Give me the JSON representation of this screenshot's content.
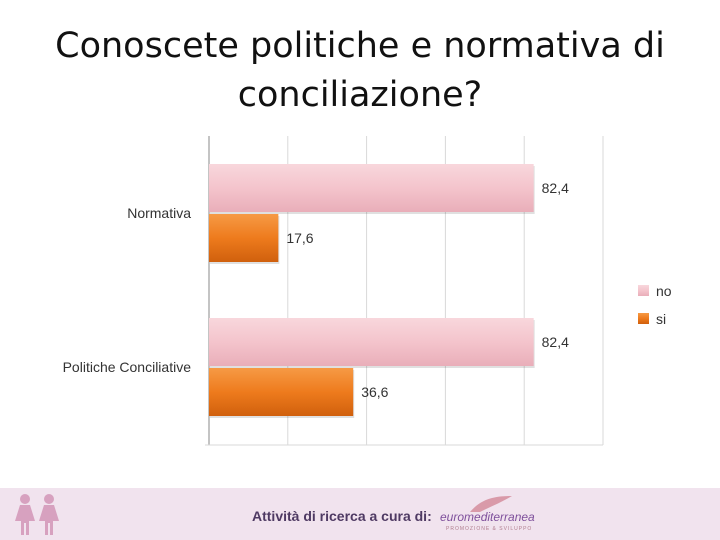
{
  "title_line1": "Conoscete politiche e normativa di",
  "title_line2": "conciliazione?",
  "chart_data": {
    "type": "bar",
    "orientation": "horizontal",
    "title": "Conoscete politiche e normativa di conciliazione?",
    "categories": [
      "Normativa",
      "Politiche Conciliative"
    ],
    "series": [
      {
        "name": "no",
        "values": [
          82.4,
          82.4
        ],
        "labels": [
          "82,4",
          "82,4"
        ],
        "color": "#f4c4cc"
      },
      {
        "name": "si",
        "values": [
          17.6,
          36.6
        ],
        "labels": [
          "17,6",
          "36,6"
        ],
        "color": "#ed7a1c"
      }
    ],
    "xlim": [
      0,
      100
    ],
    "grid": true,
    "legend": "right"
  },
  "footer": {
    "text": "Attività di ricerca a cura di:",
    "brand": "euromediterranea",
    "brand_sub": "PROMOZIONE & SVILUPPO",
    "background": "#f1e3ee"
  }
}
